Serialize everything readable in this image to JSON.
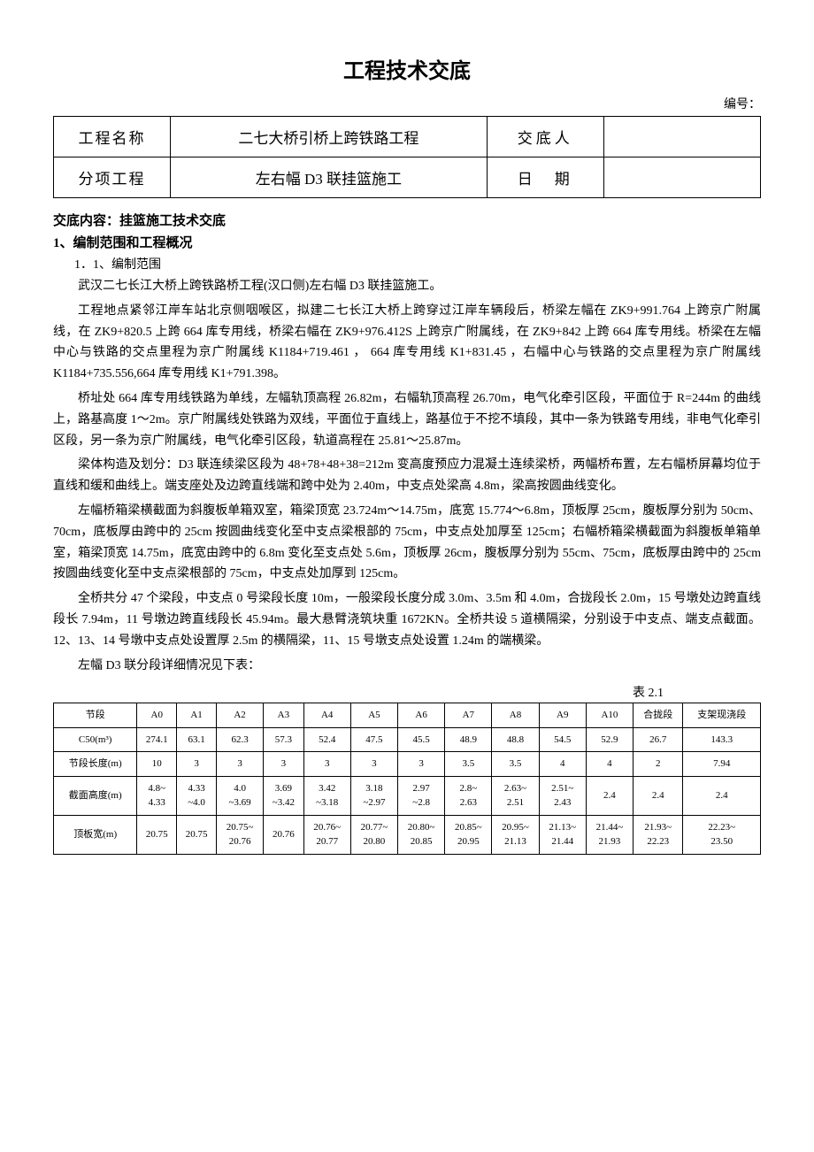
{
  "title": "工程技术交底",
  "serial_label": "编号：",
  "header": {
    "r1c1_label": "工程名称",
    "r1c2": "二七大桥引桥上跨铁路工程",
    "r1c3_label": "交底人",
    "r1c4": "",
    "r2c1_label": "分项工程",
    "r2c2": "左右幅 D3 联挂篮施工",
    "r2c3_label": "日　期",
    "r2c4": ""
  },
  "content_label": "交底内容：挂篮施工技术交底",
  "sec1_title": "1、编制范围和工程概况",
  "sec1_1_title": "1．1、编制范围",
  "p1": "武汉二七长江大桥上跨铁路桥工程(汉口侧)左右幅 D3 联挂篮施工。",
  "p2": "工程地点紧邻江岸车站北京侧咽喉区，拟建二七长江大桥上跨穿过江岸车辆段后，桥梁左幅在 ZK9+991.764 上跨京广附属线，在 ZK9+820.5 上跨 664 库专用线，桥梁右幅在 ZK9+976.412S 上跨京广附属线，在 ZK9+842 上跨 664 库专用线。桥梁在左幅中心与铁路的交点里程为京广附属线 K1184+719.461 ， 664 库专用线 K1+831.45 ，右幅中心与铁路的交点里程为京广附属线 K1184+735.556,664 库专用线 K1+791.398。",
  "p3": "桥址处 664 库专用线铁路为单线，左幅轨顶高程 26.82m，右幅轨顶高程 26.70m，电气化牵引区段，平面位于 R=244m 的曲线上，路基高度 1～2m。京广附属线处铁路为双线，平面位于直线上，路基位于不挖不填段，其中一条为铁路专用线，非电气化牵引区段，另一条为京广附属线，电气化牵引区段，轨道高程在 25.81～25.87m。",
  "p4": "梁体构造及划分：D3 联连续梁区段为 48+78+48+38=212m 变高度预应力混凝土连续梁桥，两幅桥布置，左右幅桥屏幕均位于直线和缓和曲线上。端支座处及边跨直线端和跨中处为 2.40m，中支点处梁高 4.8m，梁高按圆曲线变化。",
  "p5": "左幅桥箱梁横截面为斜腹板单箱双室，箱梁顶宽 23.724m～14.75m，底宽 15.774～6.8m，顶板厚 25cm，腹板厚分别为 50cm、70cm，底板厚由跨中的 25cm 按圆曲线变化至中支点梁根部的 75cm，中支点处加厚至 125cm；右幅桥箱梁横截面为斜腹板单箱单室，箱梁顶宽 14.75m，底宽由跨中的 6.8m 变化至支点处 5.6m，顶板厚 26cm，腹板厚分别为 55cm、75cm，底板厚由跨中的 25cm 按圆曲线变化至中支点梁根部的 75cm，中支点处加厚到 125cm。",
  "p6": "全桥共分 47 个梁段，中支点 0 号梁段长度 10m，一般梁段长度分成 3.0m、3.5m 和 4.0m，合拢段长 2.0m，15 号墩处边跨直线段长 7.94m，11 号墩边跨直线段长 45.94m。最大悬臂浇筑块重 1672KN。全桥共设 5 道横隔梁，分别设于中支点、端支点截面。12、13、14 号墩中支点处设置厚 2.5m 的横隔梁，11、15 号墩支点处设置 1.24m 的端横梁。",
  "p7": "左幅 D3 联分段详细情况见下表：",
  "table_caption": "表 2.1",
  "table": {
    "headers": [
      "节段",
      "A0",
      "A1",
      "A2",
      "A3",
      "A4",
      "A5",
      "A6",
      "A7",
      "A8",
      "A9",
      "A10",
      "合拢段",
      "支架现浇段"
    ],
    "rows": [
      {
        "label": "C50(m³)",
        "cells": [
          "274.1",
          "63.1",
          "62.3",
          "57.3",
          "52.4",
          "47.5",
          "45.5",
          "48.9",
          "48.8",
          "54.5",
          "52.9",
          "26.7",
          "143.3"
        ]
      },
      {
        "label": "节段长度(m)",
        "cells": [
          "10",
          "3",
          "3",
          "3",
          "3",
          "3",
          "3",
          "3.5",
          "3.5",
          "4",
          "4",
          "2",
          "7.94"
        ]
      },
      {
        "label": "截面高度(m)",
        "cells": [
          "4.8~\n4.33",
          "4.33\n~4.0",
          "4.0\n~3.69",
          "3.69\n~3.42",
          "3.42\n~3.18",
          "3.18\n~2.97",
          "2.97\n~2.8",
          "2.8~\n2.63",
          "2.63~\n2.51",
          "2.51~\n2.43",
          "2.4",
          "2.4",
          "2.4"
        ]
      },
      {
        "label": "顶板宽(m)",
        "cells": [
          "20.75",
          "20.75",
          "20.75~\n20.76",
          "20.76",
          "20.76~\n20.77",
          "20.77~\n20.80",
          "20.80~\n20.85",
          "20.85~\n20.95",
          "20.95~\n21.13",
          "21.13~\n21.44",
          "21.44~\n21.93",
          "21.93~\n22.23",
          "22.23~\n23.50"
        ]
      }
    ]
  }
}
